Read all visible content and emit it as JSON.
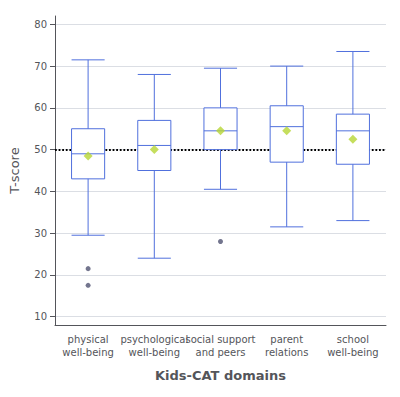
{
  "chart_data": {
    "type": "boxplot",
    "categories": [
      "physical\nwell-being",
      "psychological\nwell-being",
      "social support\nand peers",
      "parent\nrelations",
      "school\nwell-being"
    ],
    "xlabel": "Kids-CAT domains",
    "ylabel": "T-score",
    "ylim": [
      8,
      82
    ],
    "yticks": [
      10,
      20,
      30,
      40,
      50,
      60,
      70,
      80
    ],
    "grid": true,
    "marker": "diamond",
    "reference_line": {
      "value": 50,
      "line_style": "dotted"
    },
    "boxes": [
      {
        "q1": 43.0,
        "median": 49.0,
        "q3": 55.0,
        "mean": 48.5,
        "whisker_low": 29.5,
        "whisker_high": 71.5,
        "outliers": [
          21.5,
          17.5
        ]
      },
      {
        "q1": 45.0,
        "median": 51.0,
        "q3": 57.0,
        "mean": 50.0,
        "whisker_low": 24.0,
        "whisker_high": 68.0,
        "outliers": []
      },
      {
        "q1": 50.0,
        "median": 54.5,
        "q3": 60.0,
        "mean": 54.5,
        "whisker_low": 40.5,
        "whisker_high": 69.5,
        "outliers": [
          28.0
        ]
      },
      {
        "q1": 47.0,
        "median": 55.5,
        "q3": 60.5,
        "mean": 54.5,
        "whisker_low": 31.5,
        "whisker_high": 70.0,
        "outliers": []
      },
      {
        "q1": 46.5,
        "median": 54.5,
        "q3": 58.5,
        "mean": 52.5,
        "whisker_low": 33.0,
        "whisker_high": 73.5,
        "outliers": []
      }
    ]
  }
}
